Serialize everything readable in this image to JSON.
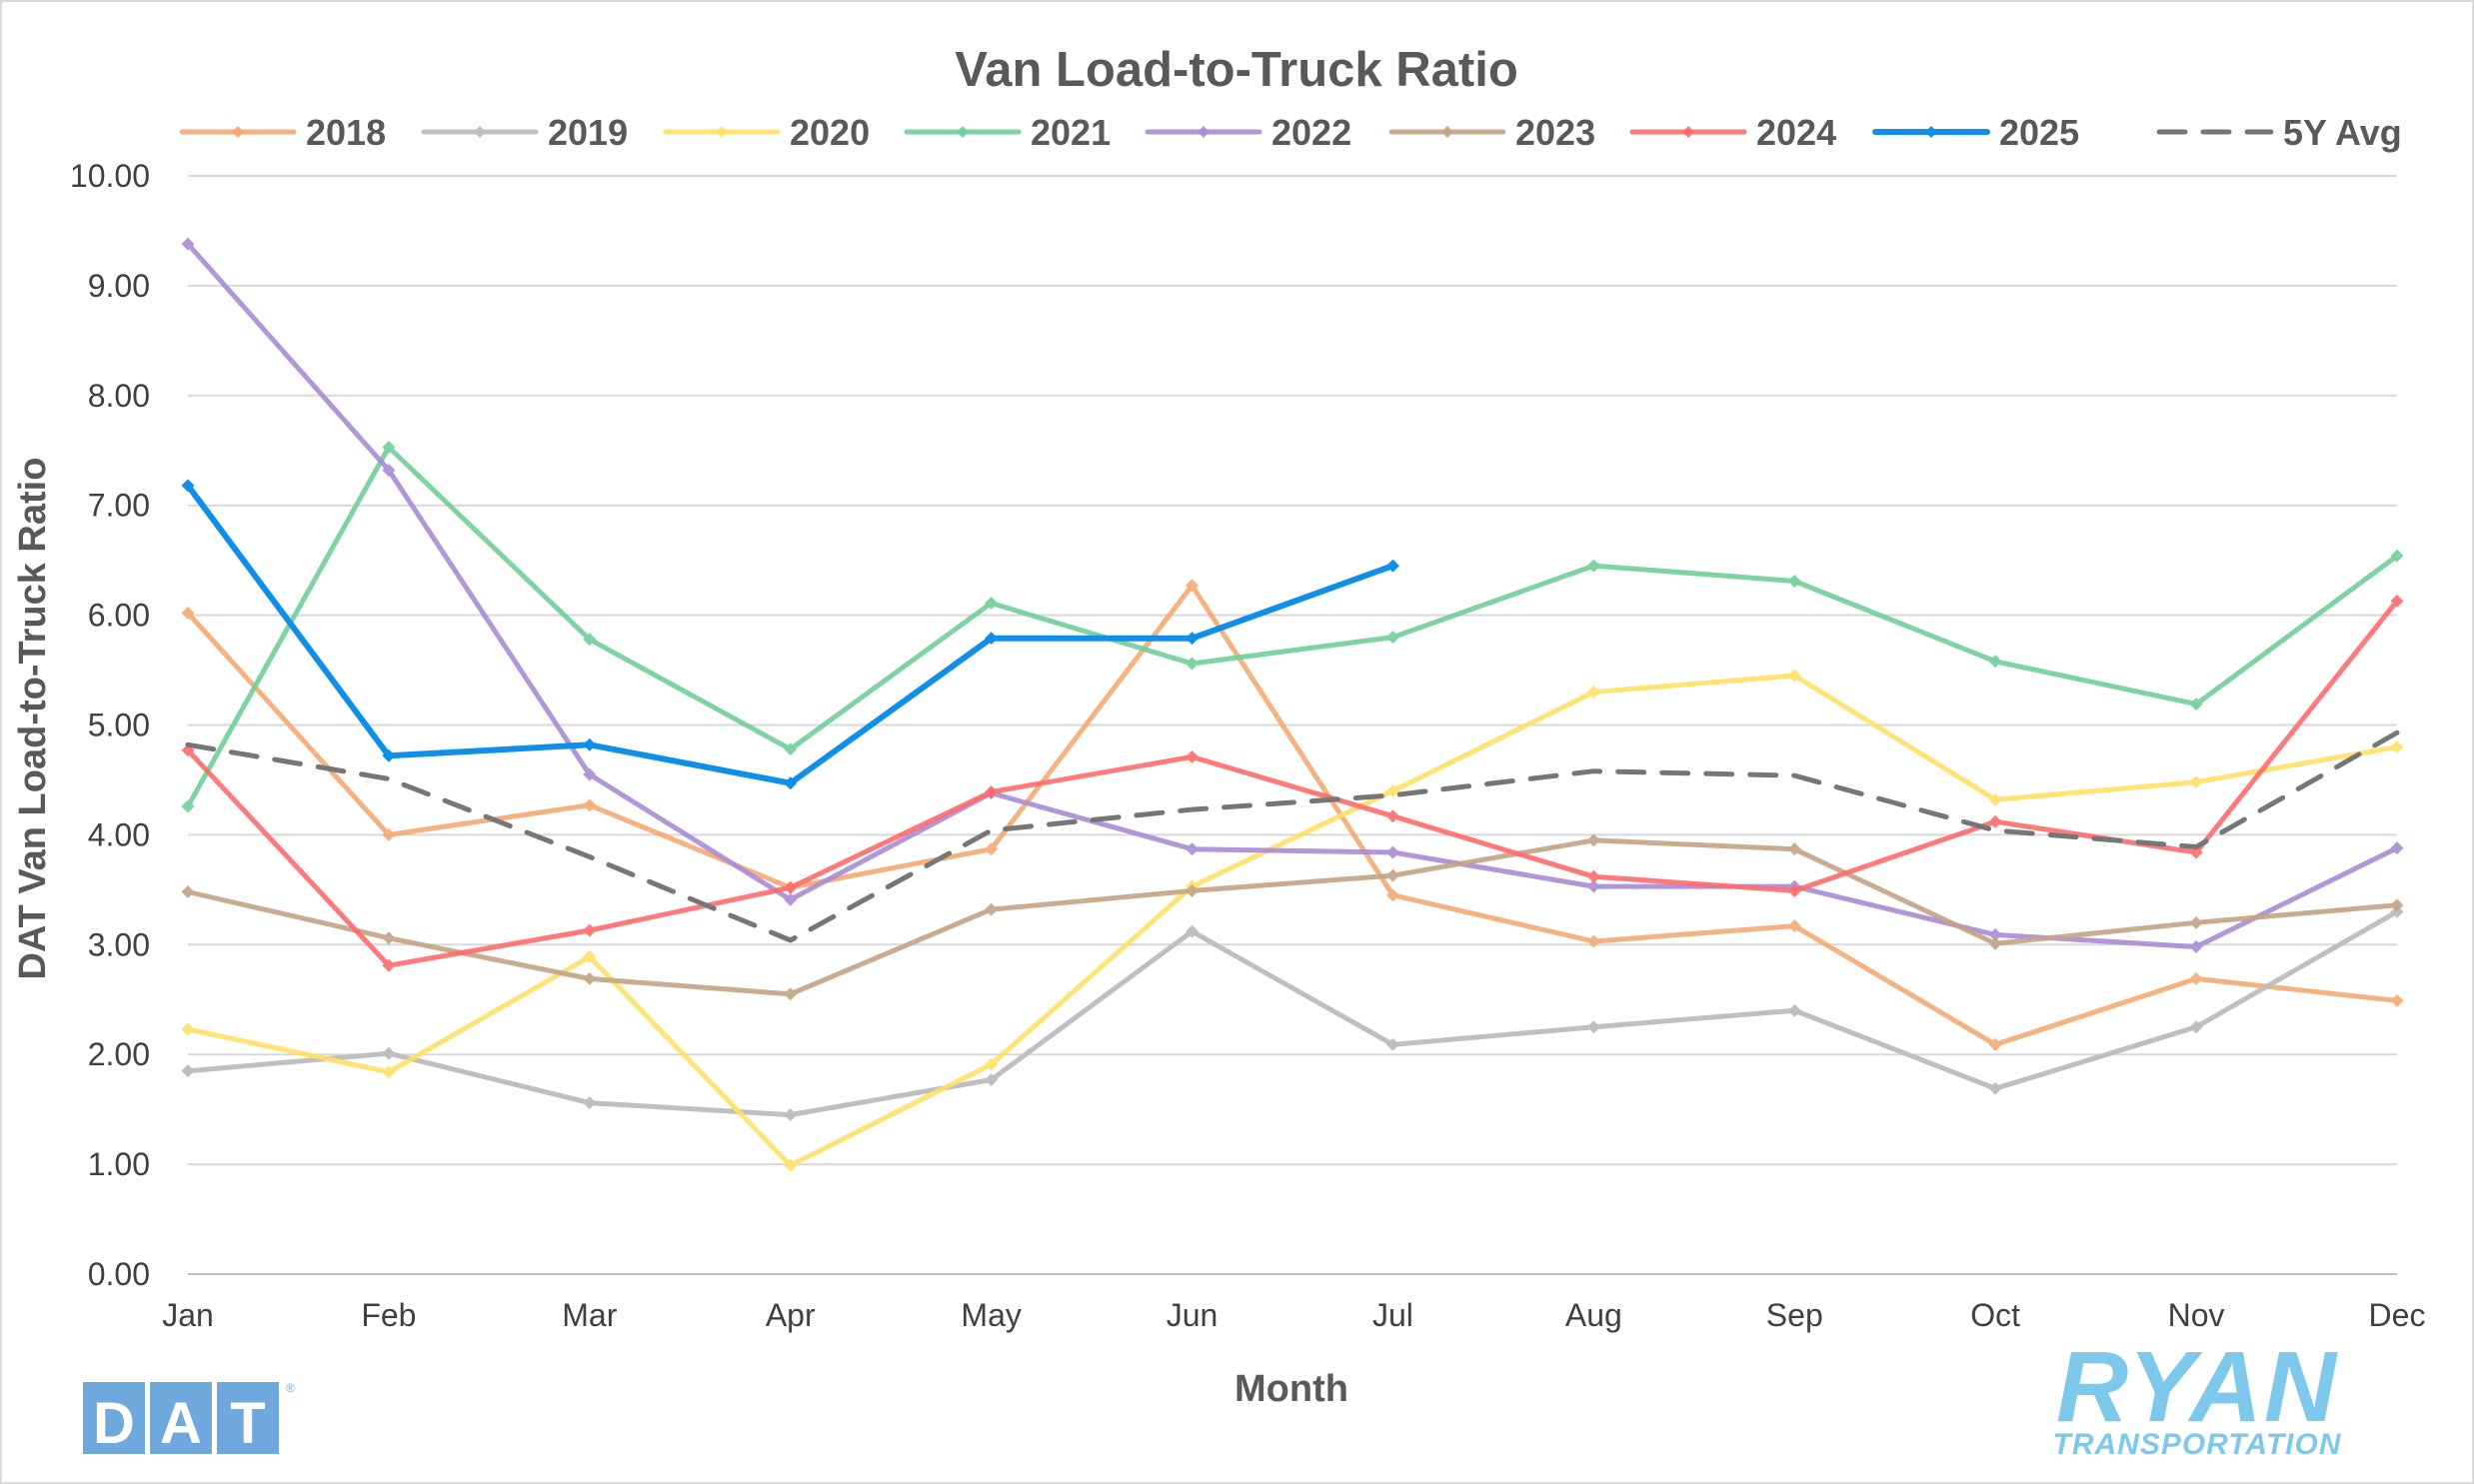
{
  "chart_data": {
    "type": "line",
    "title": "Van Load-to-Truck Ratio",
    "xlabel": "Month",
    "ylabel": "DAT Van Load-to-Truck Ratio",
    "categories": [
      "Jan",
      "Feb",
      "Mar",
      "Apr",
      "May",
      "Jun",
      "Jul",
      "Aug",
      "Sep",
      "Oct",
      "Nov",
      "Dec"
    ],
    "ylim": [
      0,
      10
    ],
    "yticks": [
      "0.00",
      "1.00",
      "2.00",
      "3.00",
      "4.00",
      "5.00",
      "6.00",
      "7.00",
      "8.00",
      "9.00",
      "10.00"
    ],
    "grid": "horizontal",
    "legend_position": "top",
    "series": [
      {
        "name": "2018",
        "color": "#F4A56B",
        "opacity": 0.85,
        "width": 5,
        "markers": true,
        "dashed": false,
        "values": [
          6.02,
          4.0,
          4.27,
          3.52,
          3.87,
          6.27,
          3.45,
          3.03,
          3.17,
          2.09,
          2.69,
          2.49
        ]
      },
      {
        "name": "2019",
        "color": "#BFBFBF",
        "opacity": 1,
        "width": 5,
        "markers": true,
        "dashed": false,
        "values": [
          1.85,
          2.01,
          1.56,
          1.45,
          1.77,
          3.12,
          2.09,
          2.25,
          2.4,
          1.69,
          2.25,
          3.3
        ]
      },
      {
        "name": "2020",
        "color": "#FFE066",
        "opacity": 0.9,
        "width": 5,
        "markers": true,
        "dashed": false,
        "values": [
          2.23,
          1.84,
          2.89,
          0.99,
          1.91,
          3.53,
          4.4,
          5.3,
          5.45,
          4.32,
          4.48,
          4.8
        ]
      },
      {
        "name": "2021",
        "color": "#6FCF97",
        "opacity": 0.9,
        "width": 5,
        "markers": true,
        "dashed": false,
        "values": [
          4.26,
          7.53,
          5.78,
          4.78,
          6.11,
          5.56,
          5.8,
          6.45,
          6.31,
          5.58,
          5.19,
          6.54
        ]
      },
      {
        "name": "2022",
        "color": "#A98BD6",
        "opacity": 0.9,
        "width": 5,
        "markers": true,
        "dashed": false,
        "values": [
          9.38,
          7.32,
          4.55,
          3.41,
          4.38,
          3.87,
          3.84,
          3.53,
          3.53,
          3.09,
          2.98,
          3.88
        ]
      },
      {
        "name": "2023",
        "color": "#C4A484",
        "opacity": 0.9,
        "width": 5,
        "markers": true,
        "dashed": false,
        "values": [
          3.48,
          3.06,
          2.69,
          2.55,
          3.32,
          3.49,
          3.63,
          3.95,
          3.87,
          3.01,
          3.2,
          3.36
        ]
      },
      {
        "name": "2024",
        "color": "#FF6B6B",
        "opacity": 0.9,
        "width": 5,
        "markers": true,
        "dashed": false,
        "values": [
          4.77,
          2.81,
          3.13,
          3.52,
          4.39,
          4.71,
          4.17,
          3.62,
          3.49,
          4.12,
          3.84,
          6.13
        ]
      },
      {
        "name": "2025",
        "color": "#0F8FE8",
        "opacity": 1,
        "width": 6,
        "markers": true,
        "dashed": false,
        "values": [
          7.18,
          4.72,
          4.82,
          4.47,
          5.79,
          5.79,
          6.45,
          null,
          null,
          null,
          null,
          null
        ]
      },
      {
        "name": "5Y Avg",
        "color": "#767676",
        "opacity": 1,
        "width": 5,
        "markers": false,
        "dashed": true,
        "values": [
          4.82,
          4.51,
          3.8,
          3.04,
          4.04,
          4.23,
          4.36,
          4.58,
          4.54,
          4.04,
          3.89,
          4.93
        ]
      }
    ]
  },
  "logos": {
    "dat": {
      "text": "DAT",
      "color": "#6FA8DC"
    },
    "ryan": {
      "text": "RYAN",
      "sub": "TRANSPORTATION",
      "color": "#7EC8EC"
    }
  }
}
